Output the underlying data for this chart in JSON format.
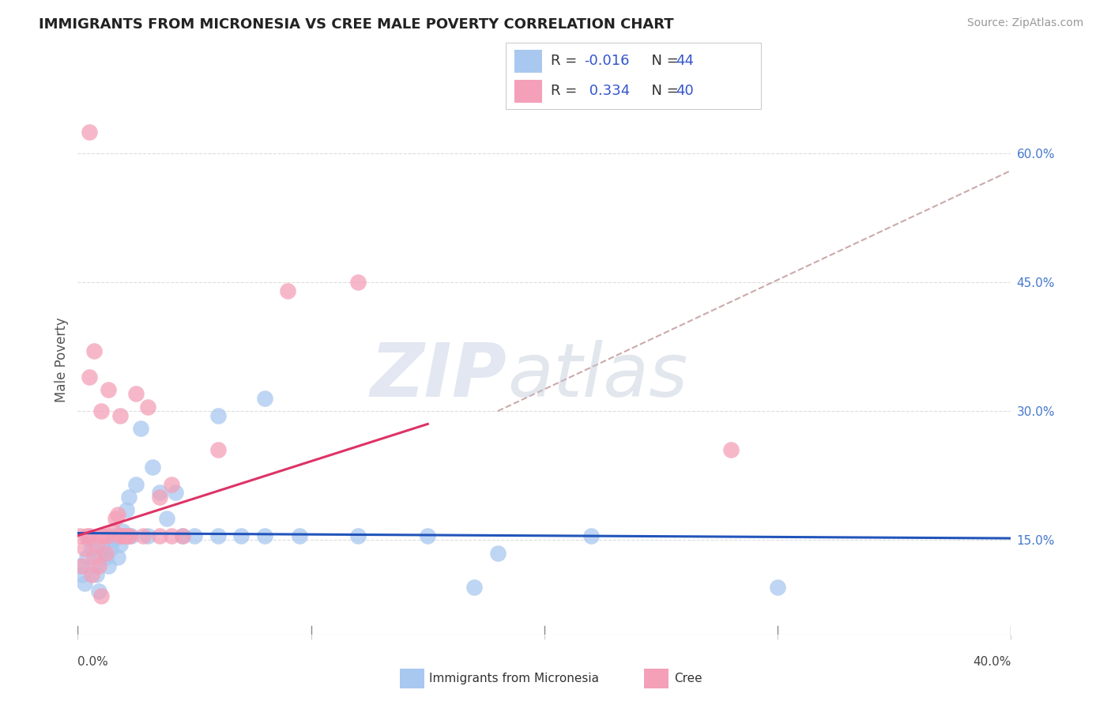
{
  "title": "IMMIGRANTS FROM MICRONESIA VS CREE MALE POVERTY CORRELATION CHART",
  "source": "Source: ZipAtlas.com",
  "ylabel": "Male Poverty",
  "right_ytick_labels": [
    "15.0%",
    "30.0%",
    "45.0%",
    "60.0%"
  ],
  "right_ytick_values": [
    0.15,
    0.3,
    0.45,
    0.6
  ],
  "xlim": [
    0.0,
    0.4
  ],
  "ylim": [
    0.04,
    0.68
  ],
  "blue_color": "#A8C8F0",
  "pink_color": "#F4A0B8",
  "blue_line_color": "#2255BB",
  "pink_line_color": "#DD3366",
  "dashed_line_color": "#CCAAAA",
  "grid_color": "#DDDDDD",
  "legend_r1": "R = -0.016",
  "legend_n1": "N = 44",
  "legend_r2": "R =  0.334",
  "legend_n2": "N = 40",
  "r_color": "#3355CC",
  "n_color": "#3355CC",
  "blue_scatter_x": [
    0.001,
    0.002,
    0.003,
    0.004,
    0.005,
    0.006,
    0.007,
    0.008,
    0.009,
    0.01,
    0.011,
    0.012,
    0.013,
    0.014,
    0.015,
    0.016,
    0.017,
    0.018,
    0.019,
    0.02,
    0.021,
    0.022,
    0.023,
    0.025,
    0.027,
    0.03,
    0.032,
    0.035,
    0.038,
    0.042,
    0.045,
    0.05,
    0.06,
    0.07,
    0.08,
    0.095,
    0.12,
    0.15,
    0.18,
    0.22,
    0.06,
    0.08,
    0.3,
    0.17
  ],
  "blue_scatter_y": [
    0.12,
    0.11,
    0.1,
    0.13,
    0.15,
    0.14,
    0.12,
    0.11,
    0.09,
    0.135,
    0.14,
    0.13,
    0.12,
    0.14,
    0.15,
    0.155,
    0.13,
    0.145,
    0.16,
    0.155,
    0.185,
    0.2,
    0.155,
    0.215,
    0.28,
    0.155,
    0.235,
    0.205,
    0.175,
    0.205,
    0.155,
    0.155,
    0.155,
    0.155,
    0.155,
    0.155,
    0.155,
    0.155,
    0.135,
    0.155,
    0.295,
    0.315,
    0.095,
    0.095
  ],
  "pink_scatter_x": [
    0.001,
    0.002,
    0.003,
    0.004,
    0.005,
    0.006,
    0.007,
    0.008,
    0.009,
    0.01,
    0.011,
    0.012,
    0.013,
    0.015,
    0.016,
    0.017,
    0.018,
    0.019,
    0.02,
    0.022,
    0.005,
    0.007,
    0.01,
    0.013,
    0.018,
    0.025,
    0.03,
    0.06,
    0.09,
    0.12,
    0.035,
    0.04,
    0.045,
    0.035,
    0.04,
    0.028,
    0.022,
    0.28,
    0.005,
    0.01
  ],
  "pink_scatter_y": [
    0.155,
    0.12,
    0.14,
    0.155,
    0.155,
    0.11,
    0.13,
    0.145,
    0.12,
    0.155,
    0.155,
    0.135,
    0.155,
    0.16,
    0.175,
    0.18,
    0.155,
    0.155,
    0.155,
    0.155,
    0.34,
    0.37,
    0.3,
    0.325,
    0.295,
    0.32,
    0.305,
    0.255,
    0.44,
    0.45,
    0.2,
    0.215,
    0.155,
    0.155,
    0.155,
    0.155,
    0.155,
    0.255,
    0.625,
    0.085
  ],
  "blue_line_y0": 0.158,
  "blue_line_y1": 0.152,
  "pink_line_x0": 0.0,
  "pink_line_y0": 0.155,
  "pink_line_x1": 0.15,
  "pink_line_y1": 0.285,
  "dashed_line_x0": 0.18,
  "dashed_line_y0": 0.3,
  "dashed_line_x1": 0.4,
  "dashed_line_y1": 0.58
}
